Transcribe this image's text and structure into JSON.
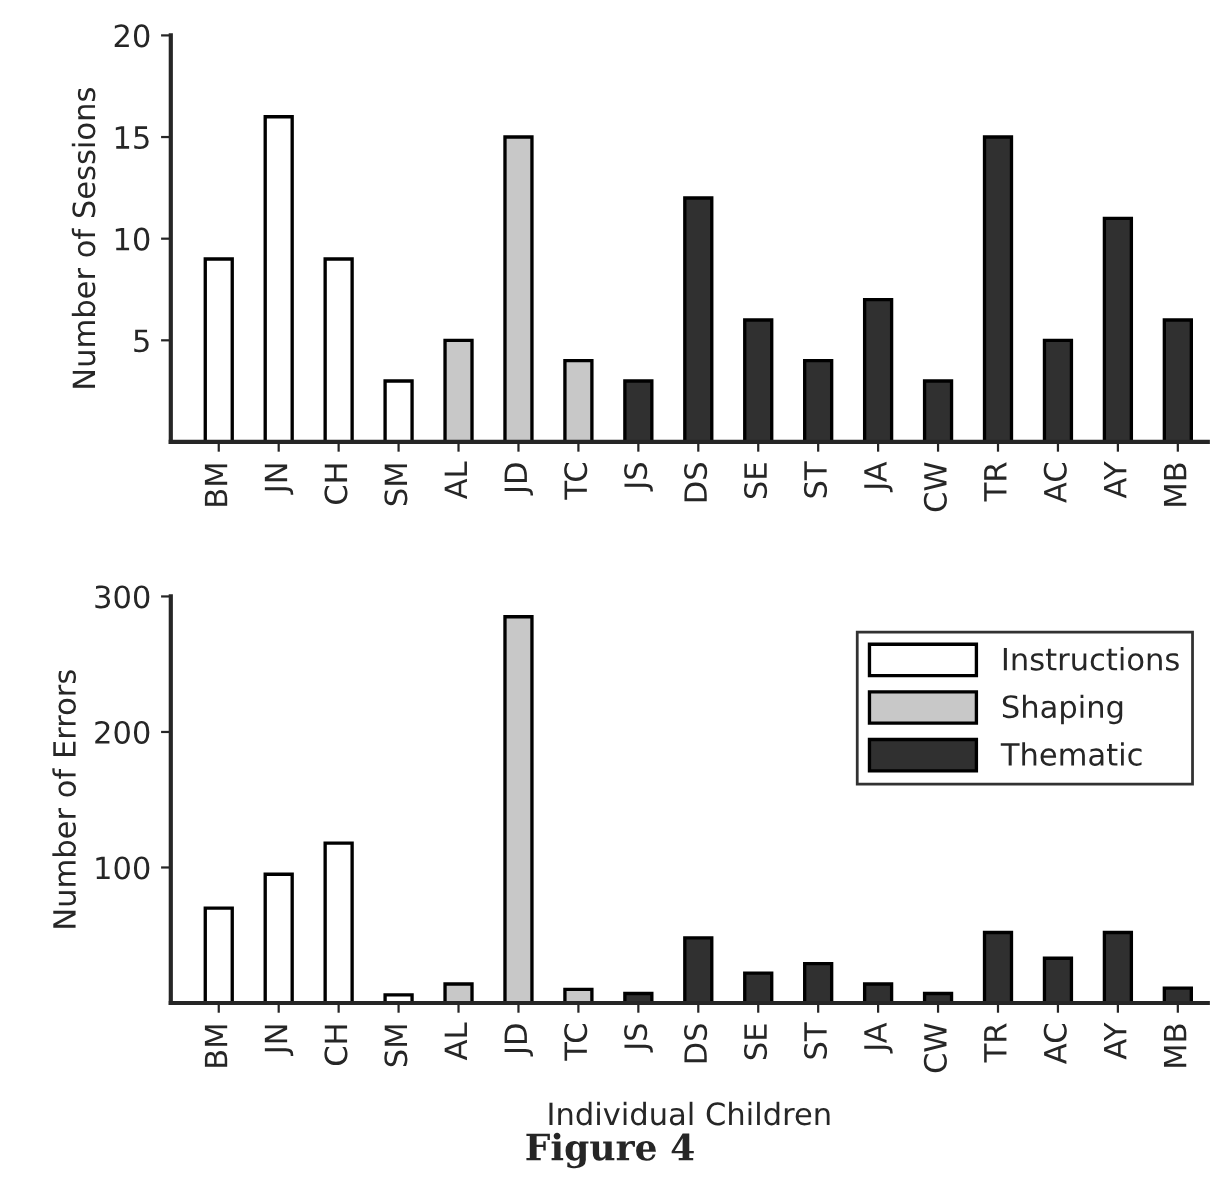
{
  "chart_data": [
    {
      "type": "bar",
      "ylabel": "Number of Sessions",
      "categories": [
        "BM",
        "JN",
        "CH",
        "SM",
        "AL",
        "JD",
        "TC",
        "JS",
        "DS",
        "SE",
        "ST",
        "JA",
        "CW",
        "TR",
        "AC",
        "AY",
        "MB"
      ],
      "series": [
        {
          "color": "#ffffff",
          "values": [
            9,
            16,
            9,
            3,
            null,
            null,
            null,
            null,
            null,
            null,
            null,
            null,
            null,
            null,
            null,
            null,
            null
          ]
        },
        {
          "color": "#c8c8c8",
          "values": [
            null,
            null,
            null,
            null,
            5,
            15,
            4,
            null,
            null,
            null,
            null,
            null,
            null,
            null,
            null,
            null,
            null
          ]
        },
        {
          "color": "#303030",
          "values": [
            null,
            null,
            null,
            null,
            null,
            null,
            null,
            3,
            12,
            6,
            4,
            7,
            3,
            15,
            5,
            11,
            6
          ]
        }
      ],
      "ylim": [
        0,
        20
      ],
      "yticks": [
        5,
        10,
        15,
        20
      ],
      "grid": false,
      "legend": false
    },
    {
      "type": "bar",
      "ylabel": "Number of Errors",
      "xlabel": "Individual Children",
      "annotations": [
        "Figure 4"
      ],
      "categories": [
        "BM",
        "JN",
        "CH",
        "SM",
        "AL",
        "JD",
        "TC",
        "JS",
        "DS",
        "SE",
        "ST",
        "JA",
        "CW",
        "TR",
        "AC",
        "AY",
        "MB"
      ],
      "series": [
        {
          "name": "Instructions",
          "color": "#ffffff",
          "values": [
            70,
            95,
            118,
            6,
            null,
            null,
            null,
            null,
            null,
            null,
            null,
            null,
            null,
            null,
            null,
            null,
            null
          ]
        },
        {
          "name": "Shaping",
          "color": "#c8c8c8",
          "values": [
            null,
            null,
            null,
            null,
            14,
            285,
            10,
            null,
            null,
            null,
            null,
            null,
            null,
            null,
            null,
            null,
            null
          ]
        },
        {
          "name": "Thematic",
          "color": "#303030",
          "values": [
            null,
            null,
            null,
            null,
            null,
            null,
            null,
            7,
            48,
            22,
            29,
            14,
            7,
            52,
            33,
            52,
            11
          ]
        }
      ],
      "ylim": [
        0,
        300
      ],
      "yticks": [
        100,
        200,
        300
      ],
      "grid": false,
      "legend": "top right"
    }
  ]
}
